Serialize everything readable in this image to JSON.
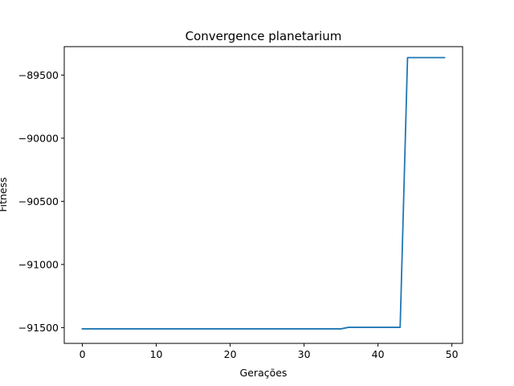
{
  "chart_data": {
    "type": "line",
    "title": "Convergence planetarium",
    "xlabel": "Gerações",
    "ylabel": "Fitness",
    "xlim": [
      -2.45,
      51.45
    ],
    "ylim": [
      -91625,
      -89275
    ],
    "xticks": [
      0,
      10,
      20,
      30,
      40,
      50
    ],
    "xtick_labels": [
      "0",
      "10",
      "20",
      "30",
      "40",
      "50"
    ],
    "yticks": [
      -91500,
      -91000,
      -90500,
      -90000,
      -89500
    ],
    "ytick_labels": [
      "−91500",
      "−91000",
      "−90500",
      "−90000",
      "−89500"
    ],
    "grid": false,
    "series": [
      {
        "color": "#1f77b4",
        "x": [
          0,
          1,
          2,
          3,
          4,
          5,
          6,
          7,
          8,
          9,
          10,
          11,
          12,
          13,
          14,
          15,
          16,
          17,
          18,
          19,
          20,
          21,
          22,
          23,
          24,
          25,
          26,
          27,
          28,
          29,
          30,
          31,
          32,
          33,
          34,
          35,
          36,
          37,
          38,
          39,
          40,
          41,
          42,
          43,
          44,
          45,
          46,
          47,
          48,
          49
        ],
        "y": [
          -91510,
          -91510,
          -91510,
          -91510,
          -91510,
          -91510,
          -91510,
          -91510,
          -91510,
          -91510,
          -91510,
          -91510,
          -91510,
          -91510,
          -91510,
          -91510,
          -91510,
          -91510,
          -91510,
          -91510,
          -91510,
          -91510,
          -91510,
          -91510,
          -91510,
          -91510,
          -91510,
          -91510,
          -91510,
          -91510,
          -91510,
          -91510,
          -91510,
          -91510,
          -91510,
          -91510,
          -91498,
          -91498,
          -91498,
          -91498,
          -91498,
          -91498,
          -91498,
          -91498,
          -89362,
          -89362,
          -89362,
          -89362,
          -89362,
          -89362
        ]
      }
    ]
  }
}
